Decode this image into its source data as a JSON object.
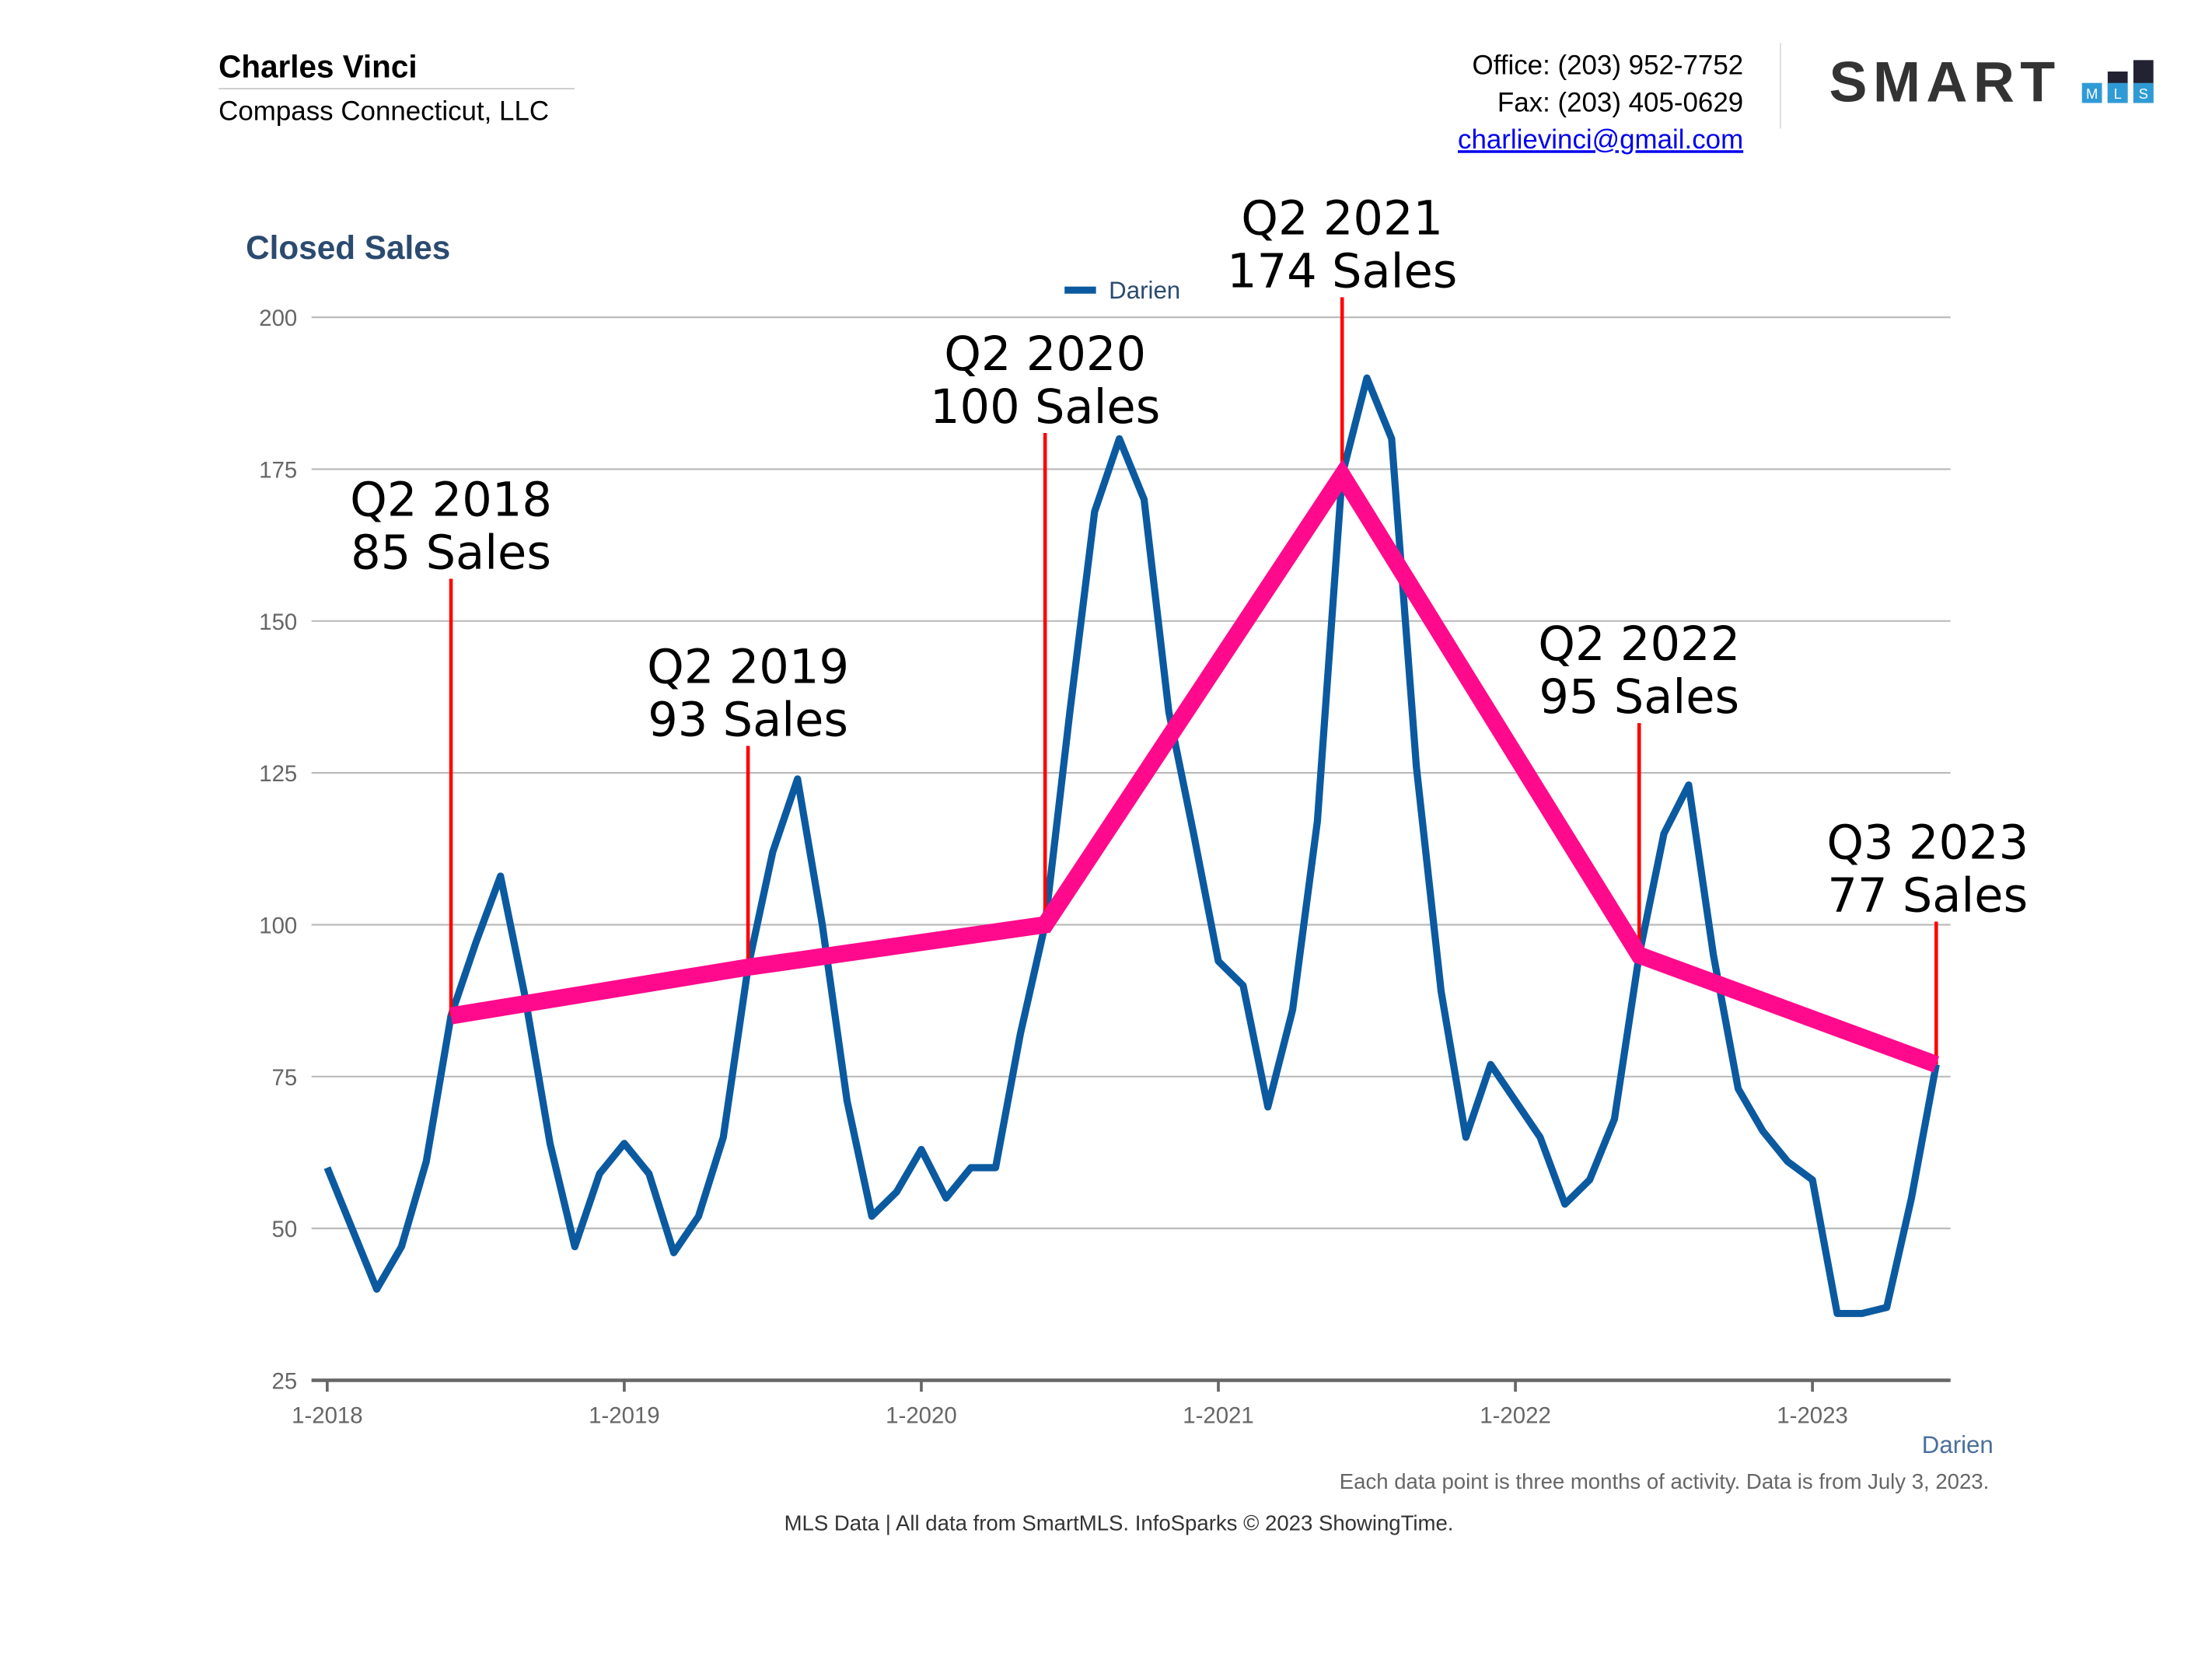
{
  "header": {
    "name": "Charles Vinci",
    "company": "Compass Connecticut, LLC",
    "office": "Office: (203) 952-7752",
    "fax": "Fax: (203) 405-0629",
    "email": "charlievinci@gmail.com",
    "logo": "SMART",
    "logo_letters": [
      "M",
      "L",
      "S"
    ]
  },
  "chart_data": {
    "type": "line",
    "title": "Closed Sales",
    "x_axis_label": "Darien",
    "note": "Each data point is three months of activity. Data is from July 3, 2023.",
    "source": "MLS Data | All data from SmartMLS. InfoSparks © 2023 ShowingTime.",
    "categories": [
      "1-2018",
      null,
      null,
      null,
      null,
      null,
      null,
      null,
      null,
      null,
      null,
      null,
      "1-2019",
      null,
      null,
      null,
      null,
      null,
      null,
      null,
      null,
      null,
      null,
      null,
      "1-2020",
      null,
      null,
      null,
      null,
      null,
      null,
      null,
      null,
      null,
      null,
      null,
      "1-2021",
      null,
      null,
      null,
      null,
      null,
      null,
      null,
      null,
      null,
      null,
      null,
      "1-2022",
      null,
      null,
      null,
      null,
      null,
      null,
      null,
      null,
      null,
      null,
      null,
      "1-2023",
      null,
      null,
      null,
      null,
      null
    ],
    "series": [
      {
        "name": "Darien",
        "color": "#0b5aa0",
        "values": [
          60,
          50,
          40,
          47,
          61,
          85,
          97,
          108,
          88,
          64,
          47,
          59,
          64,
          59,
          46,
          52,
          65,
          93,
          112,
          124,
          100,
          71,
          52,
          56,
          63,
          55,
          60,
          60,
          82,
          100,
          135,
          168,
          180,
          170,
          135,
          115,
          94,
          90,
          70,
          86,
          117,
          174,
          190,
          180,
          126,
          89,
          65,
          77,
          71,
          65,
          54,
          58,
          68,
          95,
          115,
          123,
          95,
          73,
          66,
          61,
          58,
          36,
          36,
          37,
          55,
          77
        ]
      }
    ],
    "trend": {
      "color": "#ff0a8c",
      "line_color": "#ff0000",
      "points": [
        {
          "label": "Q2 2018",
          "text": "85 Sales",
          "value": 85,
          "index": 5
        },
        {
          "label": "Q2 2019",
          "text": "93 Sales",
          "value": 93,
          "index": 17
        },
        {
          "label": "Q2 2020",
          "text": "100 Sales",
          "value": 100,
          "index": 29
        },
        {
          "label": "Q2 2021",
          "text": "174 Sales",
          "value": 174,
          "index": 41
        },
        {
          "label": "Q2 2022",
          "text": "95 Sales",
          "value": 95,
          "index": 53
        },
        {
          "label": "Q3 2023",
          "text": "77 Sales",
          "value": 77,
          "index": 65
        }
      ]
    },
    "ylim": [
      25,
      200
    ],
    "yticks": [
      25,
      50,
      75,
      100,
      125,
      150,
      175,
      200
    ],
    "grid": true
  }
}
